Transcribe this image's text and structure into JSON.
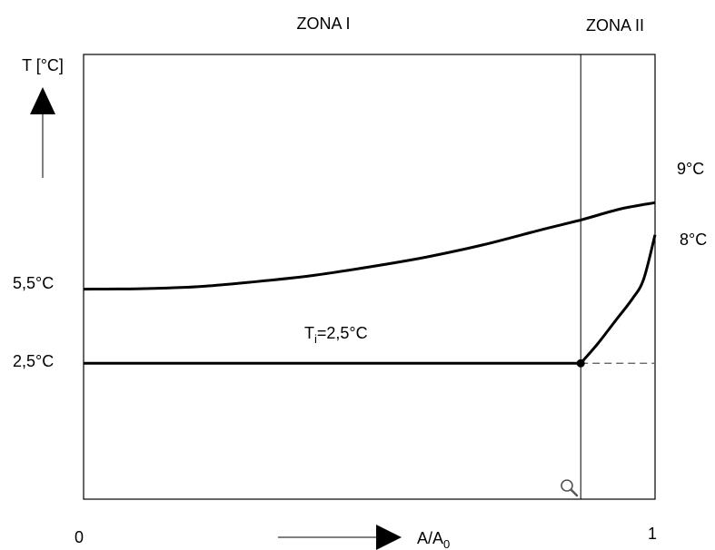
{
  "chart_data": {
    "type": "line",
    "zones": [
      "ZONA I",
      "ZONA II"
    ],
    "ylabel": "T [°C]",
    "xlabel": "A/A",
    "xlabel_subscript": "0",
    "x_ticks": [
      "0",
      "1"
    ],
    "y_labels": [
      "5,5°C",
      "2,5°C"
    ],
    "annotation": {
      "main": "T",
      "sub": "i",
      "tail": "=2,5°C"
    },
    "zone_boundary_x": 0.87,
    "xlim": [
      0,
      1
    ],
    "ylim": [
      -3,
      15
    ],
    "series": [
      {
        "end_label": "9°C",
        "x": [
          0,
          0.1,
          0.2,
          0.3,
          0.4,
          0.5,
          0.6,
          0.7,
          0.8,
          0.87,
          0.94,
          1.0
        ],
        "y": [
          5.5,
          5.52,
          5.6,
          5.8,
          6.05,
          6.4,
          6.8,
          7.3,
          7.9,
          8.3,
          8.75,
          9.0
        ]
      },
      {
        "end_label": "",
        "x": [
          0,
          0.87
        ],
        "y": [
          2.5,
          2.5
        ]
      },
      {
        "end_label": "8°C",
        "x": [
          0.87,
          0.9,
          0.93,
          0.96,
          0.98,
          1.0
        ],
        "y": [
          2.5,
          3.3,
          4.2,
          5.1,
          5.9,
          7.7
        ]
      },
      {
        "end_label": "",
        "dashed": true,
        "x": [
          0.87,
          1.0
        ],
        "y": [
          2.5,
          2.5
        ]
      }
    ],
    "marker": {
      "x": 0.87,
      "y": 2.5
    }
  },
  "colors": {
    "line": "#000000",
    "dashed": "#555555",
    "frame": "#000000"
  }
}
